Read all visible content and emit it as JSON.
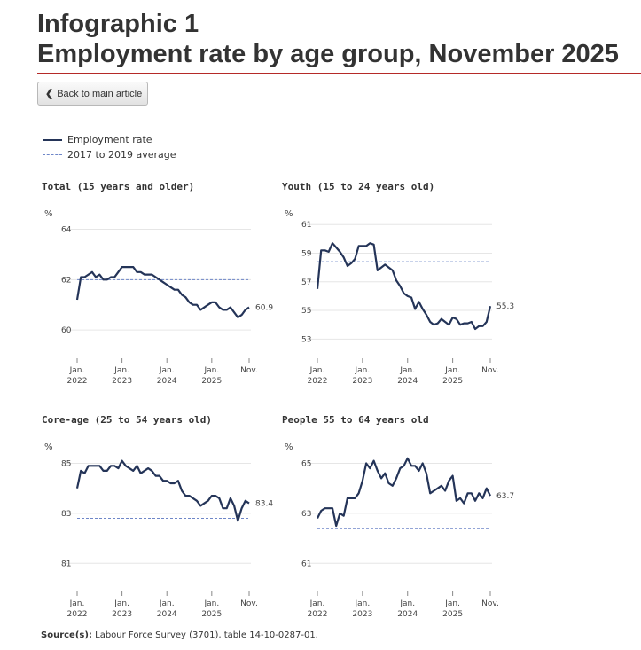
{
  "header": {
    "title_line1": "Infographic 1",
    "title_line2": "Employment rate by age group, November 2025",
    "accent_color": "#b52a28"
  },
  "back_button": {
    "icon": "chevron-left-icon",
    "label": "Back to main article"
  },
  "legend": {
    "employment_rate": "Employment rate",
    "average": "2017 to 2019 average"
  },
  "source": {
    "label": "Source(s):",
    "text": "Labour Force Survey (3701), table 14-10-0287-01."
  },
  "colors": {
    "line": "#243458",
    "average": "#6e86c8",
    "grid": "#e6e6e6"
  },
  "chart_data": [
    {
      "type": "line",
      "title": "Total (15 years and older)",
      "ylabel": "%",
      "ylim": [
        59.3,
        64.3
      ],
      "yticks": [
        60,
        62,
        64
      ],
      "x_ticks": [
        {
          "month": 0,
          "label": [
            "Jan.",
            "2022"
          ]
        },
        {
          "month": 12,
          "label": [
            "Jan.",
            "2023"
          ]
        },
        {
          "month": 24,
          "label": [
            "Jan.",
            "2024"
          ]
        },
        {
          "month": 36,
          "label": [
            "Jan.",
            "2025"
          ]
        },
        {
          "month": 46,
          "label": [
            "Nov.",
            ""
          ]
        }
      ],
      "average": 62.0,
      "end_label": "60.9",
      "values": [
        61.2,
        62.1,
        62.1,
        62.2,
        62.3,
        62.1,
        62.2,
        62.0,
        62.0,
        62.1,
        62.1,
        62.3,
        62.5,
        62.5,
        62.5,
        62.5,
        62.3,
        62.3,
        62.2,
        62.2,
        62.2,
        62.1,
        62.0,
        61.9,
        61.8,
        61.7,
        61.6,
        61.6,
        61.4,
        61.3,
        61.1,
        61.0,
        61.0,
        60.8,
        60.9,
        61.0,
        61.1,
        61.1,
        60.9,
        60.8,
        60.8,
        60.9,
        60.7,
        60.5,
        60.6,
        60.8,
        60.9
      ]
    },
    {
      "type": "line",
      "title": "Youth (15 to 24 years old)",
      "ylabel": "%",
      "ylim": [
        52.4,
        61.2
      ],
      "yticks": [
        53,
        55,
        57,
        59,
        61
      ],
      "x_ticks": [
        {
          "month": 0,
          "label": [
            "Jan.",
            "2022"
          ]
        },
        {
          "month": 12,
          "label": [
            "Jan.",
            "2023"
          ]
        },
        {
          "month": 24,
          "label": [
            "Jan.",
            "2024"
          ]
        },
        {
          "month": 36,
          "label": [
            "Jan.",
            "2025"
          ]
        },
        {
          "month": 46,
          "label": [
            "Nov.",
            ""
          ]
        }
      ],
      "average": 58.4,
      "end_label": "55.3",
      "values": [
        56.5,
        59.2,
        59.2,
        59.1,
        59.7,
        59.4,
        59.1,
        58.7,
        58.1,
        58.3,
        58.6,
        59.5,
        59.5,
        59.5,
        59.7,
        59.6,
        57.8,
        58.0,
        58.2,
        58.0,
        57.8,
        57.1,
        56.7,
        56.2,
        56.0,
        55.9,
        55.1,
        55.6,
        55.1,
        54.7,
        54.2,
        54.0,
        54.1,
        54.4,
        54.2,
        54.0,
        54.5,
        54.4,
        54.0,
        54.1,
        54.1,
        54.2,
        53.7,
        53.9,
        53.9,
        54.2,
        55.3
      ]
    },
    {
      "type": "line",
      "title": "Core-age (25 to 54 years old)",
      "ylabel": "%",
      "ylim": [
        80.3,
        85.3
      ],
      "yticks": [
        81,
        83,
        85
      ],
      "x_ticks": [
        {
          "month": 0,
          "label": [
            "Jan.",
            "2022"
          ]
        },
        {
          "month": 12,
          "label": [
            "Jan.",
            "2023"
          ]
        },
        {
          "month": 24,
          "label": [
            "Jan.",
            "2024"
          ]
        },
        {
          "month": 36,
          "label": [
            "Jan.",
            "2025"
          ]
        },
        {
          "month": 46,
          "label": [
            "Nov.",
            ""
          ]
        }
      ],
      "average": 82.8,
      "end_label": "83.4",
      "values": [
        84.0,
        84.7,
        84.6,
        84.9,
        84.9,
        84.9,
        84.9,
        84.7,
        84.7,
        84.9,
        84.9,
        84.8,
        85.1,
        84.9,
        84.8,
        84.7,
        84.9,
        84.6,
        84.7,
        84.8,
        84.7,
        84.5,
        84.5,
        84.3,
        84.3,
        84.2,
        84.2,
        84.3,
        83.9,
        83.7,
        83.7,
        83.6,
        83.5,
        83.3,
        83.4,
        83.5,
        83.7,
        83.7,
        83.6,
        83.2,
        83.2,
        83.6,
        83.3,
        82.7,
        83.2,
        83.5,
        83.4
      ]
    },
    {
      "type": "line",
      "title": "People 55 to 64 years old",
      "ylabel": "%",
      "ylim": [
        60.3,
        65.3
      ],
      "yticks": [
        61,
        63,
        65
      ],
      "x_ticks": [
        {
          "month": 0,
          "label": [
            "Jan.",
            "2022"
          ]
        },
        {
          "month": 12,
          "label": [
            "Jan.",
            "2023"
          ]
        },
        {
          "month": 24,
          "label": [
            "Jan.",
            "2024"
          ]
        },
        {
          "month": 36,
          "label": [
            "Jan.",
            "2025"
          ]
        },
        {
          "month": 46,
          "label": [
            "Nov.",
            ""
          ]
        }
      ],
      "average": 62.4,
      "end_label": "63.7",
      "values": [
        62.8,
        63.1,
        63.2,
        63.2,
        63.2,
        62.5,
        63.0,
        62.9,
        63.6,
        63.6,
        63.6,
        63.8,
        64.3,
        65.0,
        64.8,
        65.1,
        64.7,
        64.4,
        64.6,
        64.2,
        64.1,
        64.4,
        64.8,
        64.9,
        65.2,
        64.9,
        64.9,
        64.7,
        65.0,
        64.6,
        63.8,
        63.9,
        64.0,
        64.1,
        63.9,
        64.3,
        64.5,
        63.5,
        63.6,
        63.4,
        63.8,
        63.8,
        63.5,
        63.8,
        63.6,
        64.0,
        63.7
      ]
    }
  ]
}
